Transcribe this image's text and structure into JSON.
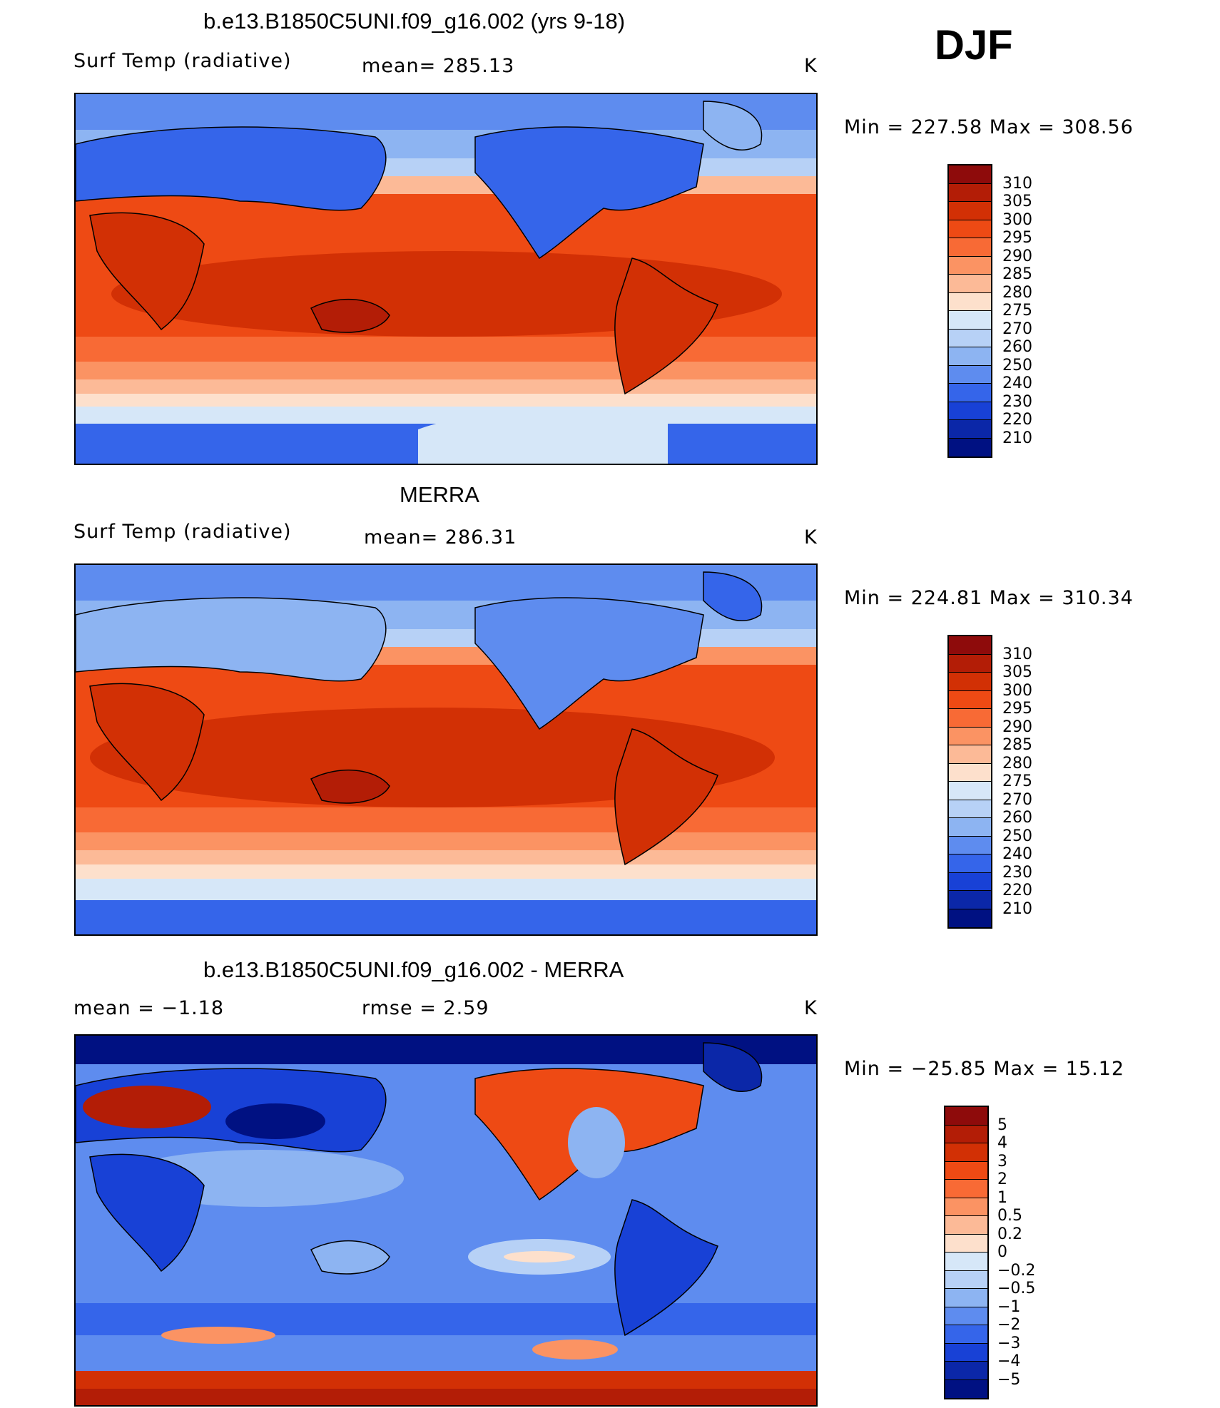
{
  "season": "DJF",
  "panels": [
    {
      "title": "b.e13.B1850C5UNI.f09_g16.002 (yrs 9-18)",
      "left_label": "Surf Temp (radiative)",
      "mid_label": "mean= 285.13",
      "units": "K",
      "minmax": "Min = 227.58 Max = 308.56",
      "colorbar": {
        "labels": [
          "310",
          "305",
          "300",
          "295",
          "290",
          "285",
          "280",
          "275",
          "270",
          "260",
          "250",
          "240",
          "230",
          "220",
          "210"
        ],
        "colors": [
          "#8e0b0b",
          "#b31d06",
          "#d23005",
          "#ee4a14",
          "#f86a35",
          "#fb9363",
          "#fcba97",
          "#fde0cc",
          "#d6e7f8",
          "#b7d1f6",
          "#8db4f2",
          "#5e8cef",
          "#3565ea",
          "#1841d6",
          "#0b27a8",
          "#001182"
        ]
      }
    },
    {
      "title": "MERRA",
      "left_label": "Surf Temp (radiative)",
      "mid_label": "mean= 286.31",
      "units": "K",
      "minmax": "Min = 224.81 Max = 310.34",
      "colorbar": {
        "labels": [
          "310",
          "305",
          "300",
          "295",
          "290",
          "285",
          "280",
          "275",
          "270",
          "260",
          "250",
          "240",
          "230",
          "220",
          "210"
        ],
        "colors": [
          "#8e0b0b",
          "#b31d06",
          "#d23005",
          "#ee4a14",
          "#f86a35",
          "#fb9363",
          "#fcba97",
          "#fde0cc",
          "#d6e7f8",
          "#b7d1f6",
          "#8db4f2",
          "#5e8cef",
          "#3565ea",
          "#1841d6",
          "#0b27a8",
          "#001182"
        ]
      }
    },
    {
      "title": "b.e13.B1850C5UNI.f09_g16.002 - MERRA",
      "left_label": "mean =   −1.18",
      "mid_label": "rmse =    2.59",
      "units": "K",
      "minmax": "Min = −25.85 Max =  15.12",
      "colorbar": {
        "labels": [
          "5",
          "4",
          "3",
          "2",
          "1",
          "0.5",
          "0.2",
          "0",
          "−0.2",
          "−0.5",
          "−1",
          "−2",
          "−3",
          "−4",
          "−5"
        ],
        "colors": [
          "#8e0b0b",
          "#b31d06",
          "#d23005",
          "#ee4a14",
          "#f86a35",
          "#fb9363",
          "#fcba97",
          "#fde0cc",
          "#d6e7f8",
          "#b7d1f6",
          "#8db4f2",
          "#5e8cef",
          "#3565ea",
          "#1841d6",
          "#0b27a8",
          "#001182"
        ]
      }
    }
  ]
}
